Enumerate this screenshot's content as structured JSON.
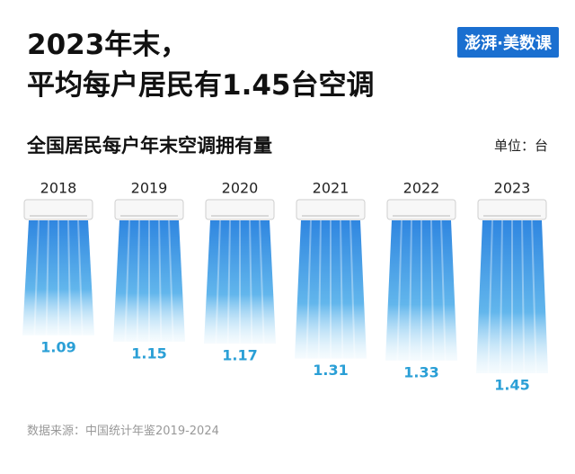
{
  "chart_data": {
    "type": "pictogram-bar",
    "title": "2023年末，\n平均每户居民有1.45台空调",
    "logo": "澎湃·美数课",
    "subtitle": "全国居民每户年末空调拥有量",
    "unit": "单位：台",
    "source": "数据来源：中国统计年鉴2019-2024",
    "categories": [
      "2018",
      "2019",
      "2020",
      "2021",
      "2022",
      "2023"
    ],
    "values": [
      1.09,
      1.15,
      1.17,
      1.31,
      1.33,
      1.45
    ],
    "color": "#2a9fd6"
  }
}
